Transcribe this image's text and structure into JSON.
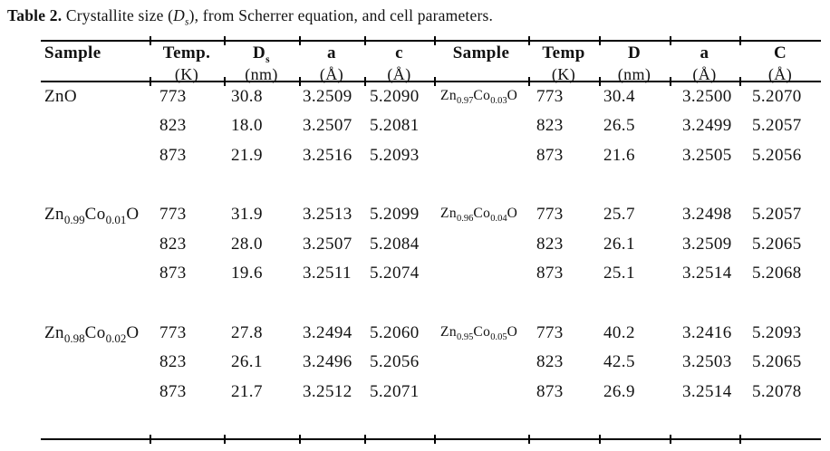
{
  "title": {
    "prefix": "Table 2.",
    "segment1": " Crystallite size (",
    "d_italic": "D",
    "d_sub": "s",
    "segment2": "), from Scherrer equation, and cell parameters."
  },
  "table": {
    "left_headers": {
      "sample": "Sample",
      "temp": "Temp.",
      "temp_unit": "(K)",
      "d": "D",
      "d_sub": "s",
      "d_unit": "(nm)",
      "a": "a",
      "a_unit": "(Å)",
      "c": "c",
      "c_unit": "(Å)"
    },
    "right_headers": {
      "sample": "Sample",
      "temp": "Temp",
      "temp_unit": "(K)",
      "d": "D",
      "d_unit": "(nm)",
      "a": "a",
      "a_unit": "(Å)",
      "c": "C",
      "c_unit": "(Å)"
    },
    "left_blocks": [
      {
        "sample": {
          "p1": "ZnO"
        },
        "rows": [
          [
            "773",
            "30.8",
            "3.2509",
            "5.2090"
          ],
          [
            "823",
            "18.0",
            "3.2507",
            "5.2081"
          ],
          [
            "873",
            "21.9",
            "3.2516",
            "5.2093"
          ]
        ]
      },
      {
        "sample": {
          "p1": "Zn",
          "s1": "0.99",
          "p2": "Co",
          "s2": "0.01",
          "p3": "O"
        },
        "rows": [
          [
            "773",
            "31.9",
            "3.2513",
            "5.2099"
          ],
          [
            "823",
            "28.0",
            "3.2507",
            "5.2084"
          ],
          [
            "873",
            "19.6",
            "3.2511",
            "5.2074"
          ]
        ]
      },
      {
        "sample": {
          "p1": "Zn",
          "s1": "0.98",
          "p2": "Co",
          "s2": "0.02",
          "p3": "O"
        },
        "rows": [
          [
            "773",
            "27.8",
            "3.2494",
            "5.2060"
          ],
          [
            "823",
            "26.1",
            "3.2496",
            "5.2056"
          ],
          [
            "873",
            "21.7",
            "3.2512",
            "5.2071"
          ]
        ]
      }
    ],
    "right_blocks": [
      {
        "sample": {
          "p1": "Zn",
          "s1": "0.97",
          "p2": "Co",
          "s2": "0.03",
          "p3": "O"
        },
        "rows": [
          [
            "773",
            "30.4",
            "3.2500",
            "5.2070"
          ],
          [
            "823",
            "26.5",
            "3.2499",
            "5.2057"
          ],
          [
            "873",
            "21.6",
            "3.2505",
            "5.2056"
          ]
        ]
      },
      {
        "sample": {
          "p1": "Zn",
          "s1": "0.96",
          "p2": "Co",
          "s2": "0.04",
          "p3": "O"
        },
        "rows": [
          [
            "773",
            "25.7",
            "3.2498",
            "5.2057"
          ],
          [
            "823",
            "26.1",
            "3.2509",
            "5.2065"
          ],
          [
            "873",
            "25.1",
            "3.2514",
            "5.2068"
          ]
        ]
      },
      {
        "sample": {
          "p1": "Zn",
          "s1": "0.95",
          "p2": "Co",
          "s2": "0.05",
          "p3": "O"
        },
        "rows": [
          [
            "773",
            "40.2",
            "3.2416",
            "5.2093"
          ],
          [
            "823",
            "42.5",
            "3.2503",
            "5.2065"
          ],
          [
            "873",
            "26.9",
            "3.2514",
            "5.2078"
          ]
        ]
      }
    ]
  }
}
